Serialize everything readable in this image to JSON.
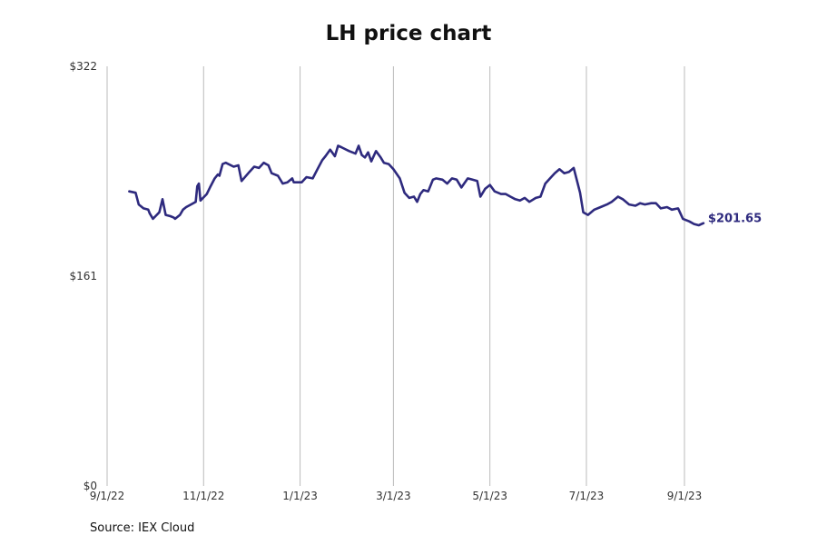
{
  "colors": {
    "line": "#2e2a7e",
    "grid": "#bbbbbb",
    "text": "#333333"
  },
  "chart_data": {
    "type": "line",
    "title": "LH price chart",
    "source": "Source: IEX Cloud",
    "xlabel": "",
    "ylabel": "",
    "x_ticks": [
      "9/1/22",
      "11/1/22",
      "1/1/23",
      "3/1/23",
      "5/1/23",
      "7/1/23",
      "9/1/23"
    ],
    "y_ticks": [
      "$0",
      "$161",
      "$322"
    ],
    "ylim": [
      0,
      322
    ],
    "xlim": [
      "2022-09-01",
      "2023-09-13"
    ],
    "grid": {
      "vertical": true,
      "horizontal": false
    },
    "end_label": "$201.65",
    "series": [
      {
        "x": [
          "2022-09-15",
          "2022-09-19",
          "2022-09-21",
          "2022-09-24",
          "2022-09-27",
          "2022-09-28",
          "2022-09-30",
          "2022-10-04",
          "2022-10-06",
          "2022-10-08",
          "2022-10-11",
          "2022-10-13",
          "2022-10-14",
          "2022-10-17",
          "2022-10-19",
          "2022-10-21",
          "2022-10-24",
          "2022-10-27",
          "2022-10-28",
          "2022-10-29",
          "2022-10-30",
          "2022-11-03",
          "2022-11-05",
          "2022-11-08",
          "2022-11-10",
          "2022-11-11",
          "2022-11-13",
          "2022-11-15",
          "2022-11-20",
          "2022-11-23",
          "2022-11-25",
          "2022-11-30",
          "2022-12-03",
          "2022-12-06",
          "2022-12-09",
          "2022-12-12",
          "2022-12-14",
          "2022-12-18",
          "2022-12-21",
          "2022-12-24",
          "2022-12-27",
          "2022-12-28",
          "2023-01-02",
          "2023-01-05",
          "2023-01-09",
          "2023-01-12",
          "2023-01-15",
          "2023-01-17",
          "2023-01-20",
          "2023-01-23",
          "2023-01-25",
          "2023-01-27",
          "2023-02-01",
          "2023-02-05",
          "2023-02-07",
          "2023-02-09",
          "2023-02-11",
          "2023-02-13",
          "2023-02-15",
          "2023-02-18",
          "2023-02-21",
          "2023-02-23",
          "2023-02-26",
          "2023-03-01",
          "2023-03-05",
          "2023-03-08",
          "2023-03-11",
          "2023-03-14",
          "2023-03-16",
          "2023-03-18",
          "2023-03-20",
          "2023-03-23",
          "2023-03-26",
          "2023-03-28",
          "2023-04-01",
          "2023-04-04",
          "2023-04-07",
          "2023-04-10",
          "2023-04-13",
          "2023-04-17",
          "2023-04-20",
          "2023-04-23",
          "2023-04-25",
          "2023-04-28",
          "2023-05-01",
          "2023-05-04",
          "2023-05-08",
          "2023-05-11",
          "2023-05-14",
          "2023-05-17",
          "2023-05-20",
          "2023-05-23",
          "2023-05-26",
          "2023-05-30",
          "2023-06-02",
          "2023-06-05",
          "2023-06-08",
          "2023-06-11",
          "2023-06-14",
          "2023-06-17",
          "2023-06-20",
          "2023-06-23",
          "2023-06-27",
          "2023-06-29",
          "2023-07-02",
          "2023-07-06",
          "2023-07-10",
          "2023-07-14",
          "2023-07-17",
          "2023-07-21",
          "2023-07-24",
          "2023-07-28",
          "2023-08-01",
          "2023-08-04",
          "2023-08-07",
          "2023-08-11",
          "2023-08-14",
          "2023-08-17",
          "2023-08-21",
          "2023-08-24",
          "2023-08-28",
          "2023-08-31",
          "2023-09-04",
          "2023-09-07",
          "2023-09-10",
          "2023-09-13"
        ],
        "values": [
          226,
          225,
          216,
          213,
          212,
          209,
          205,
          210,
          220,
          208,
          207,
          206,
          205,
          208,
          212,
          214,
          216,
          218,
          230,
          232,
          219,
          224,
          229,
          236,
          239,
          238,
          247,
          248,
          245,
          246,
          234,
          241,
          245,
          244,
          248,
          246,
          240,
          238,
          232,
          233,
          236,
          233,
          233,
          237,
          236,
          243,
          250,
          253,
          258,
          253,
          261,
          260,
          257,
          255,
          261,
          254,
          252,
          256,
          249,
          257,
          252,
          248,
          247,
          243,
          236,
          225,
          221,
          222,
          218,
          224,
          227,
          226,
          235,
          236,
          235,
          232,
          236,
          235,
          229,
          236,
          235,
          234,
          222,
          228,
          231,
          226,
          224,
          224,
          222,
          220,
          219,
          221,
          218,
          221,
          222,
          232,
          236,
          240,
          243,
          240,
          241,
          244,
          225,
          210,
          208,
          212,
          214,
          216,
          218,
          222,
          220,
          216,
          215,
          217,
          216,
          217,
          217,
          213,
          214,
          212,
          213,
          205,
          203,
          201,
          200,
          201.65
        ]
      }
    ]
  }
}
